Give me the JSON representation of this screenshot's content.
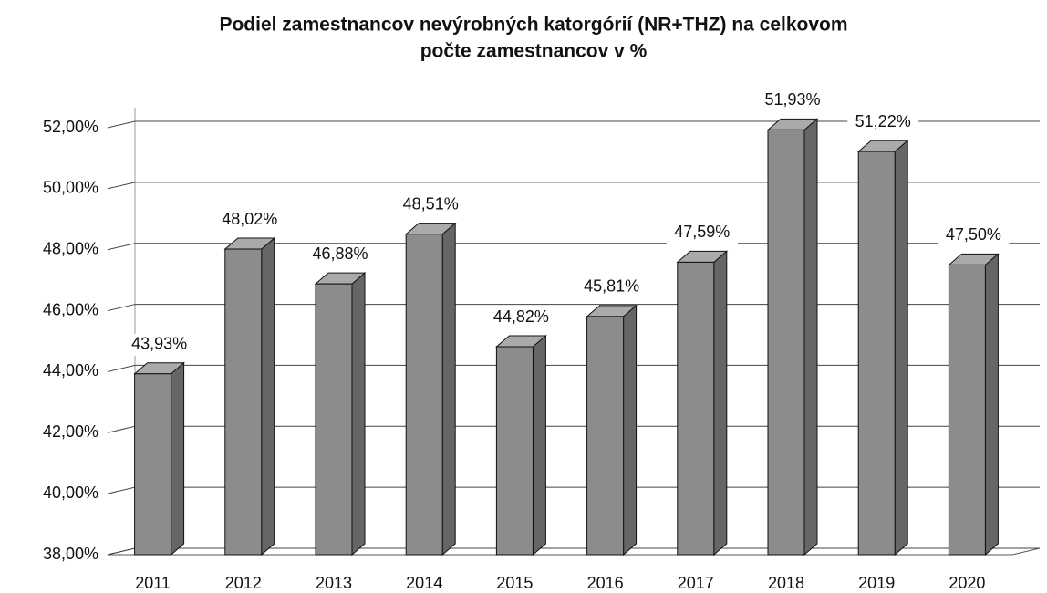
{
  "chart_data": {
    "type": "bar3d",
    "title": [
      "Podiel zamestnancov nevýrobných katorgórií (NR+THZ) na celkovom",
      "počte zamestnancov v %"
    ],
    "categories": [
      "2011",
      "2012",
      "2013",
      "2014",
      "2015",
      "2016",
      "2017",
      "2018",
      "2019",
      "2020"
    ],
    "values": [
      43.93,
      48.02,
      46.88,
      48.51,
      44.82,
      45.81,
      47.59,
      51.93,
      51.22,
      47.5
    ],
    "value_labels": [
      "43,93%",
      "48,02%",
      "46,88%",
      "48,51%",
      "44,82%",
      "45,81%",
      "47,59%",
      "51,93%",
      "51,22%",
      "47,50%"
    ],
    "color": "#8c8c8c",
    "ylim": [
      38,
      52
    ],
    "yticks": [
      {
        "value": 38,
        "label": "38,00%"
      },
      {
        "value": 40,
        "label": "40,00%"
      },
      {
        "value": 42,
        "label": "42,00%"
      },
      {
        "value": 44,
        "label": "44,00%"
      },
      {
        "value": 46,
        "label": "46,00%"
      },
      {
        "value": 48,
        "label": "48,00%"
      },
      {
        "value": 50,
        "label": "50,00%"
      },
      {
        "value": 52,
        "label": "52,00%"
      }
    ],
    "grid": true
  }
}
